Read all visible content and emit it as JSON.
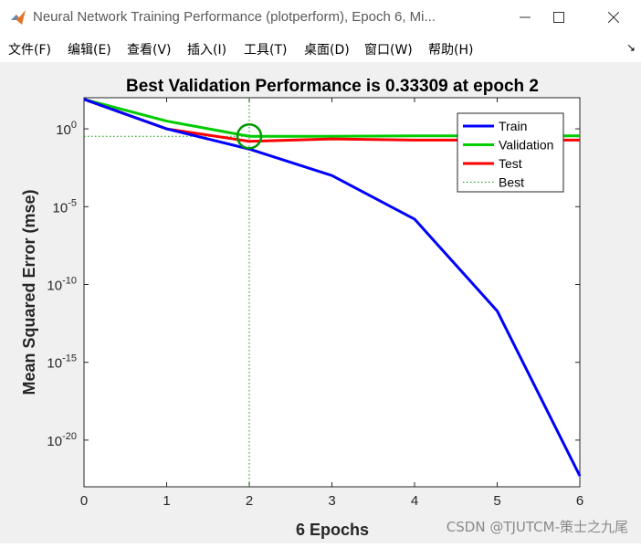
{
  "window": {
    "title": "Neural Network Training Performance (plotperform), Epoch 6, Mi..."
  },
  "menu": [
    {
      "label": "文件(F)",
      "name": "menu-file"
    },
    {
      "label": "编辑(E)",
      "name": "menu-edit"
    },
    {
      "label": "查看(V)",
      "name": "menu-view"
    },
    {
      "label": "插入(I)",
      "name": "menu-insert"
    },
    {
      "label": "工具(T)",
      "name": "menu-tools"
    },
    {
      "label": "桌面(D)",
      "name": "menu-desktop"
    },
    {
      "label": "窗口(W)",
      "name": "menu-window"
    },
    {
      "label": "帮助(H)",
      "name": "menu-help"
    }
  ],
  "watermark": "CSDN @TJUTCM-策士之九尾",
  "chart_data": {
    "type": "line",
    "title": "Best Validation Performance is 0.33309 at epoch 2",
    "xlabel": "6 Epochs",
    "ylabel": "Mean Squared Error  (mse)",
    "xlim": [
      0,
      6
    ],
    "ylim_log10": [
      -23,
      2
    ],
    "yscale": "log",
    "grid": false,
    "legend_position": "top-right",
    "xticks": [
      "0",
      "1",
      "2",
      "3",
      "4",
      "5",
      "6"
    ],
    "yticks": [
      {
        "base": "10",
        "exp": "0",
        "log10": 0
      },
      {
        "base": "10",
        "exp": "-5",
        "log10": -5
      },
      {
        "base": "10",
        "exp": "-10",
        "log10": -10
      },
      {
        "base": "10",
        "exp": "-15",
        "log10": -15
      },
      {
        "base": "10",
        "exp": "-20",
        "log10": -20
      }
    ],
    "x": [
      0,
      1,
      2,
      3,
      4,
      5,
      6
    ],
    "series": [
      {
        "name": "Train",
        "color": "#0000ff",
        "log10_values": [
          1.9,
          0.0,
          -1.3,
          -3.0,
          -5.8,
          -11.7,
          -22.3
        ]
      },
      {
        "name": "Validation",
        "color": "#00cc00",
        "log10_values": [
          1.9,
          0.5,
          -0.48,
          -0.48,
          -0.45,
          -0.45,
          -0.45
        ]
      },
      {
        "name": "Test",
        "color": "#ff0000",
        "log10_values": [
          1.9,
          0.0,
          -0.8,
          -0.65,
          -0.72,
          -0.72,
          -0.72
        ]
      }
    ],
    "best": {
      "name": "Best",
      "epoch": 2,
      "log10_value": -0.48,
      "color": "#009900"
    }
  }
}
